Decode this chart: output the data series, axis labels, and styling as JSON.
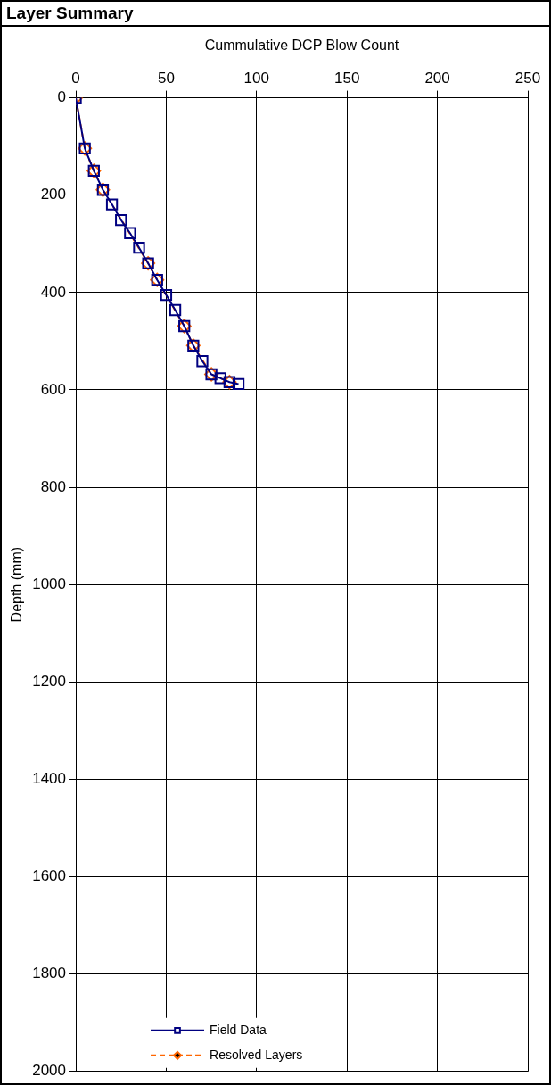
{
  "chart_data": {
    "type": "line",
    "title": "Layer Summary",
    "xlabel": "Cummulative DCP Blow Count",
    "ylabel": "Depth (mm)",
    "xlim": [
      0,
      250
    ],
    "xticks": [
      0,
      50,
      100,
      150,
      200,
      250
    ],
    "ylim": [
      2000,
      0
    ],
    "yticks": [
      0,
      200,
      400,
      600,
      800,
      1000,
      1200,
      1400,
      1600,
      1800,
      2000
    ],
    "grid": true,
    "legend": "bottom",
    "series": [
      {
        "name": "Field Data",
        "color": "#000080",
        "marker": "square",
        "line_style": "solid",
        "x": [
          0,
          5,
          10,
          15,
          20,
          25,
          30,
          35,
          40,
          45,
          50,
          55,
          60,
          65,
          70,
          75,
          80,
          85,
          90
        ],
        "values": [
          0,
          104,
          150,
          189,
          219,
          251,
          278,
          308,
          340,
          374,
          405,
          436,
          469,
          509,
          541,
          568,
          576,
          584,
          588
        ]
      },
      {
        "name": "Resolved Layers",
        "color": "#ff6600",
        "marker": "diamond",
        "line_style": "dashed",
        "x": [
          0,
          5,
          10,
          15,
          40,
          45,
          60,
          65,
          75,
          85
        ],
        "values": [
          0,
          104,
          150,
          189,
          340,
          374,
          469,
          509,
          568,
          584
        ]
      }
    ]
  }
}
